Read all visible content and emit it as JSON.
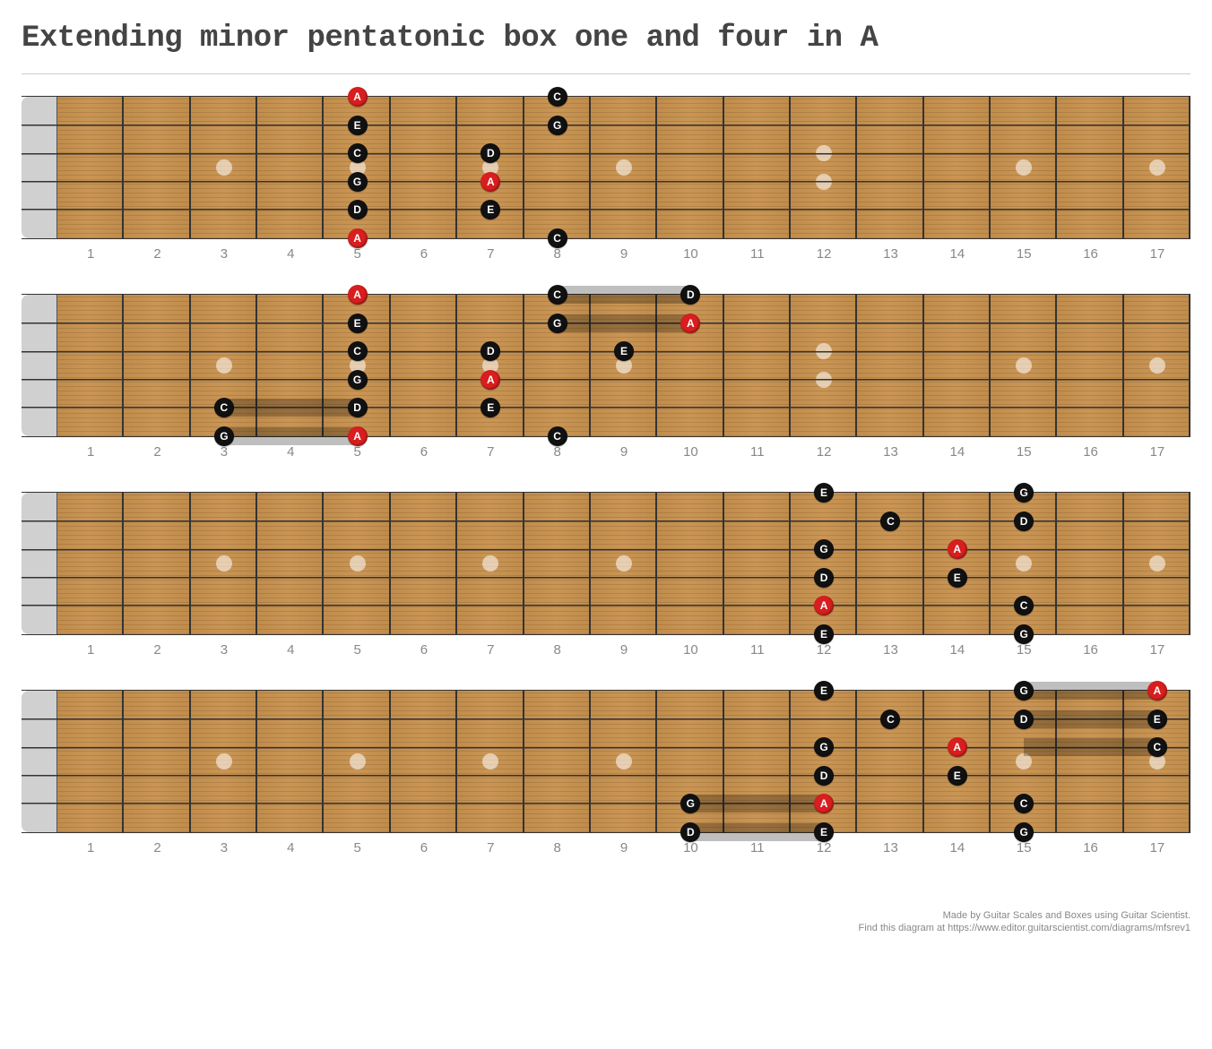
{
  "title": "Extending minor pentatonic box one and four in A",
  "footer_line1": "Made by Guitar Scales and Boxes using Guitar Scientist.",
  "footer_line2": "Find this diagram at https://www.editor.guitarscientist.com/diagrams/mfsrev1",
  "layout": {
    "num_frets": 17,
    "num_strings": 6,
    "fret_labels": [
      "1",
      "2",
      "3",
      "4",
      "5",
      "6",
      "7",
      "8",
      "9",
      "10",
      "11",
      "12",
      "13",
      "14",
      "15",
      "16",
      "17"
    ],
    "inlay_single_frets": [
      3,
      5,
      7,
      9,
      15,
      17
    ],
    "inlay_double_fret": 12,
    "nut_color": "#d0d0d0",
    "wood_color": "#c8924f",
    "fret_wire_color": "#333333",
    "string_color": "#333333",
    "inlay_color": "rgba(255,255,255,0.55)",
    "shade_color": "rgba(0,0,0,0.25)"
  },
  "note_colors": {
    "root_bg": "#d81e1e",
    "root_fg": "#ffffff",
    "normal_bg": "#111111",
    "normal_fg": "#ffffff"
  },
  "boards": [
    {
      "shades": [],
      "notes": [
        {
          "string": 1,
          "fret": 5,
          "label": "A",
          "root": true
        },
        {
          "string": 2,
          "fret": 5,
          "label": "E",
          "root": false
        },
        {
          "string": 3,
          "fret": 5,
          "label": "C",
          "root": false
        },
        {
          "string": 4,
          "fret": 5,
          "label": "G",
          "root": false
        },
        {
          "string": 5,
          "fret": 5,
          "label": "D",
          "root": false
        },
        {
          "string": 6,
          "fret": 5,
          "label": "A",
          "root": true
        },
        {
          "string": 3,
          "fret": 7,
          "label": "D",
          "root": false
        },
        {
          "string": 4,
          "fret": 7,
          "label": "A",
          "root": true
        },
        {
          "string": 5,
          "fret": 7,
          "label": "E",
          "root": false
        },
        {
          "string": 1,
          "fret": 8,
          "label": "C",
          "root": false
        },
        {
          "string": 2,
          "fret": 8,
          "label": "G",
          "root": false
        },
        {
          "string": 6,
          "fret": 8,
          "label": "C",
          "root": false
        }
      ]
    },
    {
      "shades": [
        {
          "string": 5,
          "fret_start": 3,
          "fret_end": 5
        },
        {
          "string": 6,
          "fret_start": 3,
          "fret_end": 5
        },
        {
          "string": 1,
          "fret_start": 8,
          "fret_end": 10
        },
        {
          "string": 2,
          "fret_start": 8,
          "fret_end": 10
        }
      ],
      "notes": [
        {
          "string": 5,
          "fret": 3,
          "label": "C",
          "root": false
        },
        {
          "string": 6,
          "fret": 3,
          "label": "G",
          "root": false
        },
        {
          "string": 1,
          "fret": 5,
          "label": "A",
          "root": true
        },
        {
          "string": 2,
          "fret": 5,
          "label": "E",
          "root": false
        },
        {
          "string": 3,
          "fret": 5,
          "label": "C",
          "root": false
        },
        {
          "string": 4,
          "fret": 5,
          "label": "G",
          "root": false
        },
        {
          "string": 5,
          "fret": 5,
          "label": "D",
          "root": false
        },
        {
          "string": 6,
          "fret": 5,
          "label": "A",
          "root": true
        },
        {
          "string": 3,
          "fret": 7,
          "label": "D",
          "root": false
        },
        {
          "string": 4,
          "fret": 7,
          "label": "A",
          "root": true
        },
        {
          "string": 5,
          "fret": 7,
          "label": "E",
          "root": false
        },
        {
          "string": 1,
          "fret": 8,
          "label": "C",
          "root": false
        },
        {
          "string": 2,
          "fret": 8,
          "label": "G",
          "root": false
        },
        {
          "string": 6,
          "fret": 8,
          "label": "C",
          "root": false
        },
        {
          "string": 3,
          "fret": 9,
          "label": "E",
          "root": false
        },
        {
          "string": 1,
          "fret": 10,
          "label": "D",
          "root": false
        },
        {
          "string": 2,
          "fret": 10,
          "label": "A",
          "root": true
        }
      ]
    },
    {
      "shades": [],
      "notes": [
        {
          "string": 1,
          "fret": 12,
          "label": "E",
          "root": false
        },
        {
          "string": 3,
          "fret": 12,
          "label": "G",
          "root": false
        },
        {
          "string": 4,
          "fret": 12,
          "label": "D",
          "root": false
        },
        {
          "string": 5,
          "fret": 12,
          "label": "A",
          "root": true
        },
        {
          "string": 6,
          "fret": 12,
          "label": "E",
          "root": false
        },
        {
          "string": 2,
          "fret": 13,
          "label": "C",
          "root": false
        },
        {
          "string": 3,
          "fret": 14,
          "label": "A",
          "root": true
        },
        {
          "string": 4,
          "fret": 14,
          "label": "E",
          "root": false
        },
        {
          "string": 1,
          "fret": 15,
          "label": "G",
          "root": false
        },
        {
          "string": 2,
          "fret": 15,
          "label": "D",
          "root": false
        },
        {
          "string": 5,
          "fret": 15,
          "label": "C",
          "root": false
        },
        {
          "string": 6,
          "fret": 15,
          "label": "G",
          "root": false
        }
      ]
    },
    {
      "shades": [
        {
          "string": 5,
          "fret_start": 10,
          "fret_end": 12
        },
        {
          "string": 6,
          "fret_start": 10,
          "fret_end": 12
        },
        {
          "string": 1,
          "fret_start": 15,
          "fret_end": 17
        },
        {
          "string": 2,
          "fret_start": 15,
          "fret_end": 17
        },
        {
          "string": 3,
          "fret_start": 15,
          "fret_end": 17
        }
      ],
      "notes": [
        {
          "string": 5,
          "fret": 10,
          "label": "G",
          "root": false
        },
        {
          "string": 6,
          "fret": 10,
          "label": "D",
          "root": false
        },
        {
          "string": 1,
          "fret": 12,
          "label": "E",
          "root": false
        },
        {
          "string": 3,
          "fret": 12,
          "label": "G",
          "root": false
        },
        {
          "string": 4,
          "fret": 12,
          "label": "D",
          "root": false
        },
        {
          "string": 5,
          "fret": 12,
          "label": "A",
          "root": true
        },
        {
          "string": 6,
          "fret": 12,
          "label": "E",
          "root": false
        },
        {
          "string": 2,
          "fret": 13,
          "label": "C",
          "root": false
        },
        {
          "string": 3,
          "fret": 14,
          "label": "A",
          "root": true
        },
        {
          "string": 4,
          "fret": 14,
          "label": "E",
          "root": false
        },
        {
          "string": 1,
          "fret": 15,
          "label": "G",
          "root": false
        },
        {
          "string": 2,
          "fret": 15,
          "label": "D",
          "root": false
        },
        {
          "string": 5,
          "fret": 15,
          "label": "C",
          "root": false
        },
        {
          "string": 6,
          "fret": 15,
          "label": "G",
          "root": false
        },
        {
          "string": 1,
          "fret": 17,
          "label": "A",
          "root": true
        },
        {
          "string": 2,
          "fret": 17,
          "label": "E",
          "root": false
        },
        {
          "string": 3,
          "fret": 17,
          "label": "C",
          "root": false
        }
      ]
    }
  ]
}
